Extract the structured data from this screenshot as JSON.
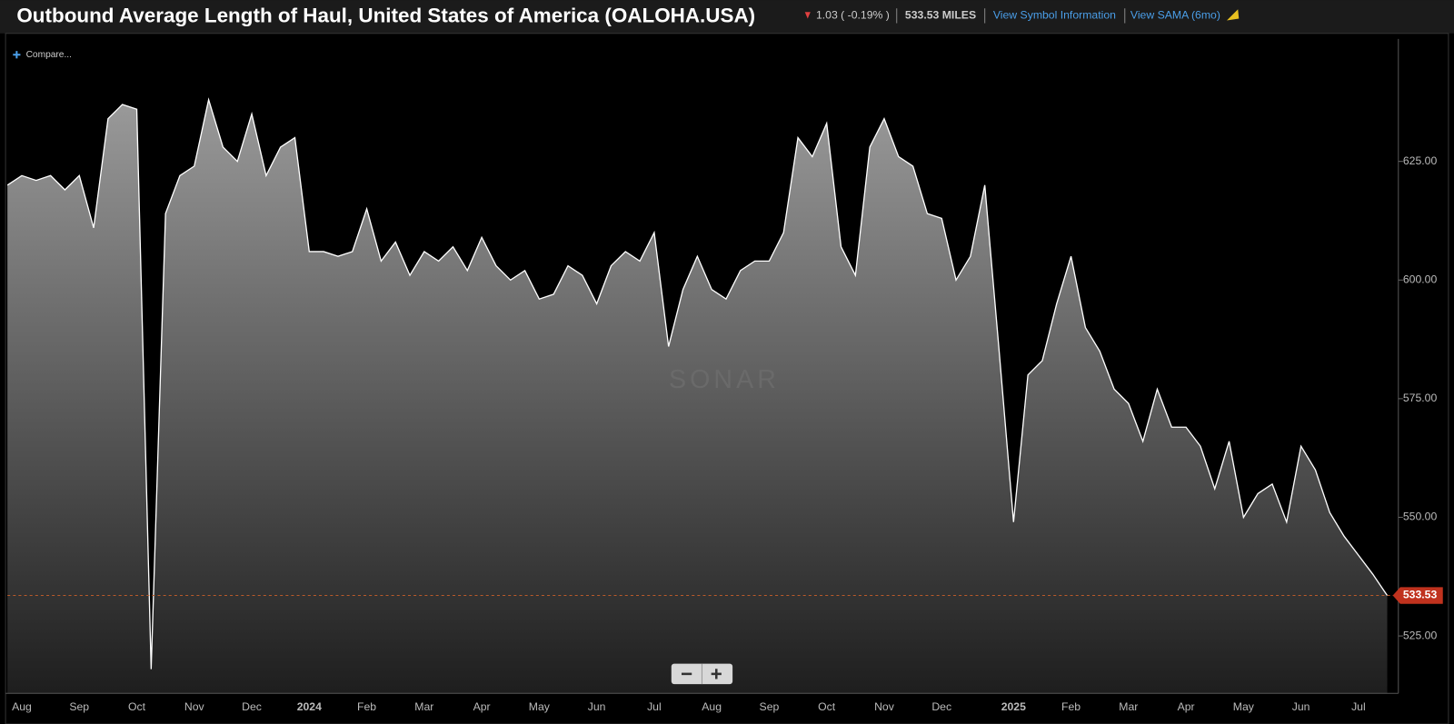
{
  "chart_data": {
    "type": "area",
    "title": "Outbound Average Length of Haul, United States of America (OALOHA.USA)",
    "change_label": "1.03 ( -0.19% )",
    "price_label": "533.53 MILES",
    "links": [
      "View Symbol Information",
      "View SAMA (6mo)"
    ],
    "compare_label": "Compare...",
    "watermark": "SONAR",
    "color": "#ffffff",
    "categories": [
      null,
      "Aug",
      null,
      null,
      null,
      "Sep",
      null,
      null,
      null,
      "Oct",
      null,
      null,
      null,
      "Nov",
      null,
      null,
      null,
      "Dec",
      null,
      null,
      null,
      "2024",
      null,
      null,
      null,
      "Feb",
      null,
      null,
      null,
      "Mar",
      null,
      null,
      null,
      "Apr",
      null,
      null,
      null,
      "May",
      null,
      null,
      null,
      "Jun",
      null,
      null,
      null,
      "Jul",
      null,
      null,
      null,
      "Aug",
      null,
      null,
      null,
      "Sep",
      null,
      null,
      null,
      "Oct",
      null,
      null,
      null,
      "Nov",
      null,
      null,
      null,
      "Dec",
      null,
      null,
      null,
      null,
      "2025",
      null,
      null,
      null,
      "Feb",
      null,
      null,
      null,
      "Mar",
      null,
      null,
      null,
      "Apr",
      null,
      null,
      null,
      "May",
      null,
      null,
      null,
      "Jun",
      null,
      null,
      null,
      "Jul",
      null,
      null
    ],
    "values": [
      620,
      622,
      621,
      622,
      619,
      622,
      611,
      634,
      637,
      636,
      518,
      614,
      622,
      624,
      638,
      628,
      625,
      635,
      622,
      628,
      630,
      606,
      606,
      605,
      606,
      615,
      604,
      608,
      601,
      606,
      604,
      607,
      602,
      609,
      603,
      600,
      602,
      596,
      597,
      603,
      601,
      595,
      603,
      606,
      604,
      610,
      586,
      598,
      605,
      598,
      596,
      602,
      604,
      604,
      610,
      630,
      626,
      633,
      607,
      601,
      628,
      634,
      626,
      624,
      614,
      613,
      600,
      605,
      620,
      585,
      549,
      580,
      583,
      595,
      605,
      590,
      585,
      577,
      574,
      566,
      577,
      569,
      569,
      565,
      556,
      566,
      550,
      555,
      557,
      549,
      565,
      560,
      551,
      546,
      542,
      538,
      533.53
    ],
    "ylim": [
      512.9,
      650.8
    ],
    "yticks": [
      {
        "value": 525,
        "label": "525.00"
      },
      {
        "value": 550,
        "label": "550.00"
      },
      {
        "value": 575,
        "label": "575.00"
      },
      {
        "value": 600,
        "label": "600.00"
      },
      {
        "value": 625,
        "label": "625.00"
      }
    ],
    "grid": false
  }
}
